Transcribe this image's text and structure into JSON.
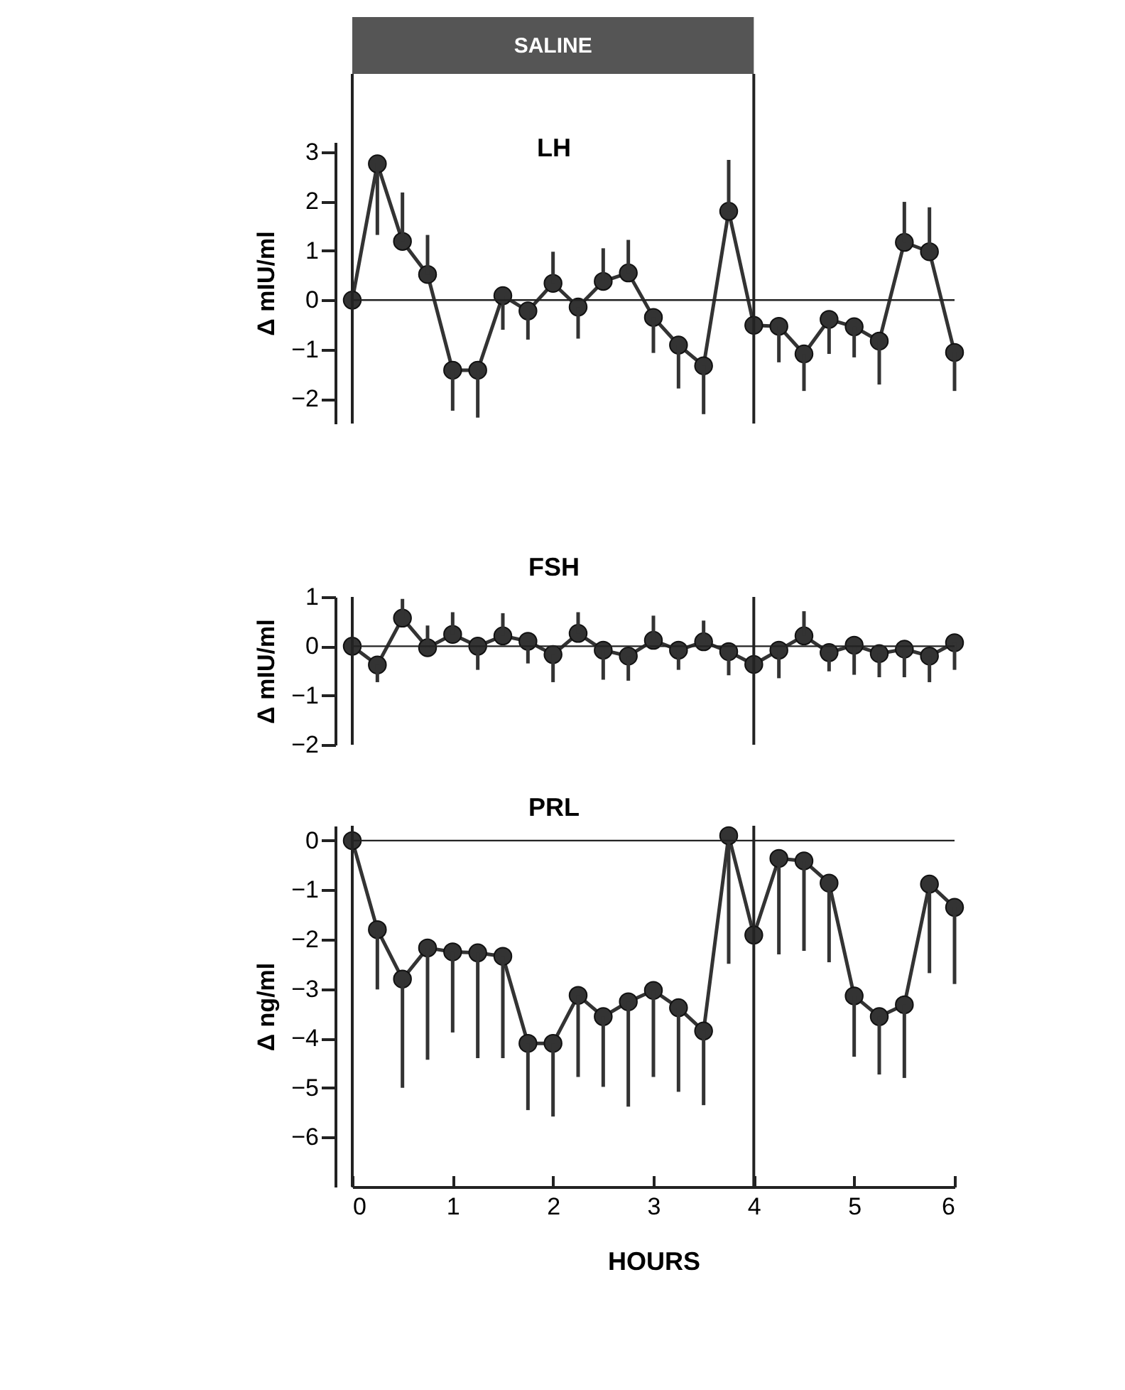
{
  "chart_data": [
    {
      "type": "line",
      "title": "LH",
      "ylabel": "Δ mIU/ml",
      "annotations": [
        "SALINE"
      ],
      "x": [
        0,
        0.25,
        0.5,
        0.75,
        1,
        1.25,
        1.5,
        1.75,
        2,
        2.25,
        2.5,
        2.75,
        3,
        3.25,
        3.5,
        3.75,
        4,
        4.25,
        4.5,
        4.75,
        5,
        5.25,
        5.5,
        5.75,
        6
      ],
      "series": [
        {
          "color": "#333333",
          "values": [
            0,
            2.76,
            1.19,
            0.52,
            -1.42,
            -1.42,
            0.09,
            -0.22,
            0.34,
            -0.14,
            0.38,
            0.55,
            -0.35,
            -0.91,
            -1.33,
            1.8,
            -0.51,
            -0.53,
            -1.09,
            -0.39,
            -0.54,
            -0.83,
            1.17,
            0.98,
            -1.06
          ],
          "errors": [
            null,
            [
              1.32,
              2.76
            ],
            [
              1.19,
              2.18
            ],
            [
              0.52,
              1.32
            ],
            [
              -2.24,
              -1.42
            ],
            [
              -2.38,
              -1.42
            ],
            [
              -0.6,
              0.09
            ],
            [
              -0.8,
              -0.22
            ],
            [
              0.34,
              0.98
            ],
            [
              -0.78,
              -0.14
            ],
            [
              0.38,
              1.05
            ],
            [
              0.55,
              1.22
            ],
            [
              -1.07,
              -0.35
            ],
            [
              -1.79,
              -0.91
            ],
            [
              -2.31,
              -1.33
            ],
            [
              1.8,
              2.84
            ],
            null,
            [
              -1.26,
              -0.53
            ],
            [
              -1.84,
              -1.09
            ],
            [
              -1.09,
              -0.39
            ],
            [
              -1.16,
              -0.54
            ],
            [
              -1.71,
              -0.83
            ],
            [
              1.17,
              1.99
            ],
            [
              0.98,
              1.88
            ],
            [
              -1.84,
              -1.06
            ]
          ]
        }
      ],
      "xlim": [
        0,
        6
      ],
      "ylim": [
        -2.5,
        3.2
      ],
      "yticks": [
        -2,
        -1,
        0,
        1,
        2,
        3
      ],
      "tick_labels": "y",
      "marker": "circle",
      "line_style": "solid",
      "ref_lines": [
        {
          "axis": "y",
          "value": 0
        },
        {
          "axis": "x",
          "value": 0
        },
        {
          "axis": "x",
          "value": 4
        }
      ]
    },
    {
      "type": "line",
      "title": "FSH",
      "ylabel": "Δ mIU/ml",
      "x": [
        0,
        0.25,
        0.5,
        0.75,
        1,
        1.25,
        1.5,
        1.75,
        2,
        2.25,
        2.5,
        2.75,
        3,
        3.25,
        3.5,
        3.75,
        4,
        4.25,
        4.5,
        4.75,
        5,
        5.25,
        5.5,
        5.75,
        6
      ],
      "series": [
        {
          "color": "#333333",
          "values": [
            0,
            -0.38,
            0.57,
            -0.03,
            0.24,
            0,
            0.21,
            0.1,
            -0.17,
            0.26,
            -0.08,
            -0.2,
            0.12,
            -0.08,
            0.09,
            -0.11,
            -0.37,
            -0.08,
            0.21,
            -0.13,
            0.02,
            -0.15,
            -0.06,
            -0.2,
            0.07
          ],
          "errors": [
            null,
            [
              -0.73,
              -0.38
            ],
            [
              0.57,
              0.96
            ],
            [
              -0.03,
              0.42
            ],
            [
              0.24,
              0.69
            ],
            [
              -0.48,
              0
            ],
            [
              0.21,
              0.67
            ],
            [
              -0.35,
              0.1
            ],
            [
              -0.73,
              -0.17
            ],
            [
              0.26,
              0.69
            ],
            [
              -0.68,
              -0.08
            ],
            [
              -0.7,
              -0.2
            ],
            [
              0.12,
              0.62
            ],
            [
              -0.48,
              -0.08
            ],
            [
              0.09,
              0.52
            ],
            [
              -0.59,
              -0.11
            ],
            null,
            [
              -0.65,
              -0.08
            ],
            [
              0.21,
              0.71
            ],
            [
              -0.51,
              -0.13
            ],
            [
              -0.58,
              0.02
            ],
            [
              -0.63,
              -0.15
            ],
            [
              -0.63,
              -0.06
            ],
            [
              -0.73,
              -0.2
            ],
            [
              -0.48,
              0.07
            ]
          ]
        }
      ],
      "xlim": [
        0,
        6
      ],
      "ylim": [
        -2,
        1
      ],
      "yticks": [
        -2,
        -1,
        0,
        1
      ],
      "tick_labels": "y",
      "marker": "circle",
      "line_style": "solid",
      "ref_lines": [
        {
          "axis": "y",
          "value": 0
        },
        {
          "axis": "x",
          "value": 0
        },
        {
          "axis": "x",
          "value": 4
        }
      ]
    },
    {
      "type": "line",
      "title": "PRL",
      "xlabel": "HOURS",
      "ylabel": "Δ ng/ml",
      "x": [
        0,
        0.25,
        0.5,
        0.75,
        1,
        1.25,
        1.5,
        1.75,
        2,
        2.25,
        2.5,
        2.75,
        3,
        3.25,
        3.5,
        3.75,
        4,
        4.25,
        4.5,
        4.75,
        5,
        5.25,
        5.5,
        5.75,
        6
      ],
      "series": [
        {
          "color": "#333333",
          "values": [
            0,
            -1.8,
            -2.8,
            -2.17,
            -2.25,
            -2.27,
            -2.34,
            -4.1,
            -4.1,
            -3.13,
            -3.56,
            -3.26,
            -3.03,
            -3.38,
            -3.85,
            0.1,
            -1.91,
            -0.36,
            -0.41,
            -0.86,
            -3.14,
            -3.56,
            -3.32,
            -0.88,
            -1.35
          ],
          "errors": [
            null,
            [
              -3.01,
              -1.8
            ],
            [
              -5.0,
              -2.8
            ],
            [
              -4.43,
              -2.17
            ],
            [
              -3.88,
              -2.25
            ],
            [
              -4.4,
              -2.27
            ],
            [
              -4.4,
              -2.34
            ],
            [
              -5.45,
              -4.1
            ],
            [
              -5.58,
              -4.1
            ],
            [
              -4.78,
              -3.13
            ],
            [
              -4.98,
              -3.56
            ],
            [
              -5.38,
              -3.26
            ],
            [
              -4.78,
              -3.03
            ],
            [
              -5.08,
              -3.38
            ],
            [
              -5.35,
              -3.85
            ],
            [
              -2.49,
              0.1
            ],
            null,
            [
              -2.3,
              -0.36
            ],
            [
              -2.23,
              -0.41
            ],
            [
              -2.46,
              -0.86
            ],
            [
              -4.37,
              -3.14
            ],
            [
              -4.73,
              -3.56
            ],
            [
              -4.8,
              -3.32
            ],
            [
              -2.68,
              -0.88
            ],
            [
              -2.9,
              -1.35
            ]
          ]
        }
      ],
      "xlim": [
        0,
        6
      ],
      "xticks": [
        0,
        1,
        2,
        3,
        4,
        5,
        6
      ],
      "ylim": [
        -7,
        0.3
      ],
      "yticks": [
        -6,
        -5,
        -4,
        -3,
        -2,
        -1,
        0
      ],
      "marker": "circle",
      "line_style": "solid",
      "ref_lines": [
        {
          "axis": "y",
          "value": 0
        },
        {
          "axis": "x",
          "value": 0
        },
        {
          "axis": "x",
          "value": 4
        }
      ]
    }
  ]
}
